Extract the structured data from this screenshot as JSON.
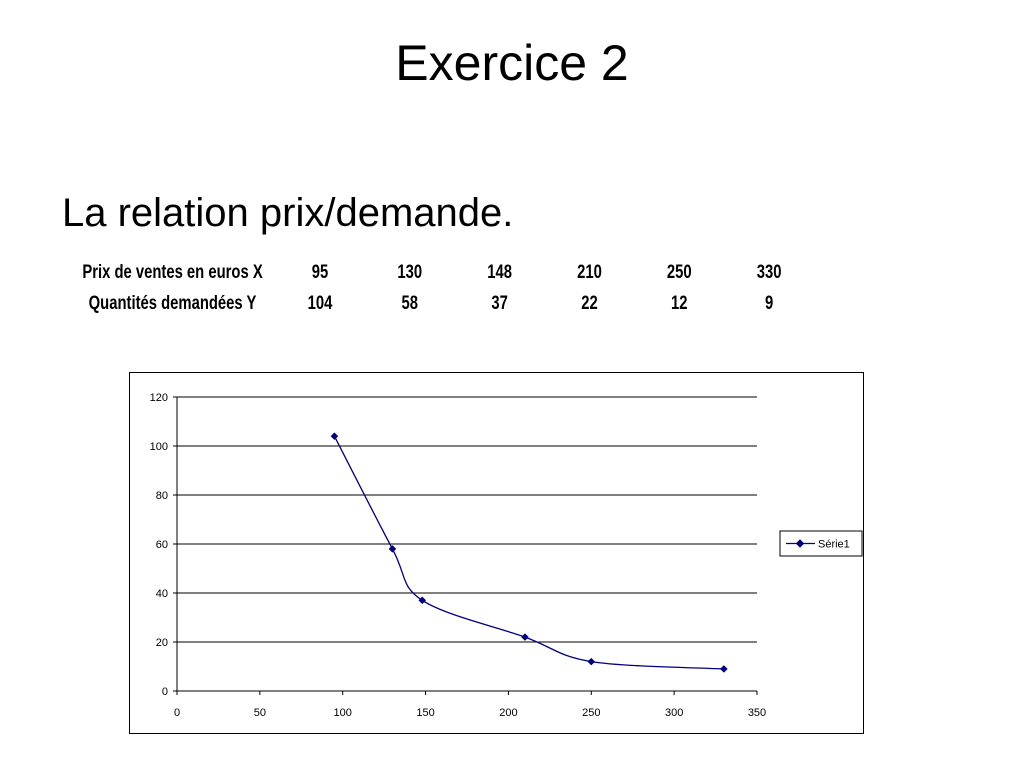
{
  "slide": {
    "title": "Exercice 2",
    "subtitle": "La relation prix/demande."
  },
  "table": {
    "rows": [
      {
        "label": "Prix de ventes en euros X",
        "values": [
          "95",
          "130",
          "148",
          "210",
          "250",
          "330"
        ]
      },
      {
        "label": "Quantités demandées Y",
        "values": [
          "104",
          "58",
          "37",
          "22",
          "12",
          "9"
        ]
      }
    ]
  },
  "chart_data": {
    "type": "scatter",
    "x": [
      95,
      130,
      148,
      210,
      250,
      330
    ],
    "series": [
      {
        "name": "Série1",
        "values": [
          104,
          58,
          37,
          22,
          12,
          9
        ],
        "color": "#000080"
      }
    ],
    "xlim": [
      0,
      350
    ],
    "ylim": [
      0,
      120
    ],
    "xticks": [
      0,
      50,
      100,
      150,
      200,
      250,
      300,
      350
    ],
    "yticks": [
      0,
      20,
      40,
      60,
      80,
      100,
      120
    ],
    "grid": "horizontal",
    "legend_position": "right",
    "smoothed": true
  }
}
